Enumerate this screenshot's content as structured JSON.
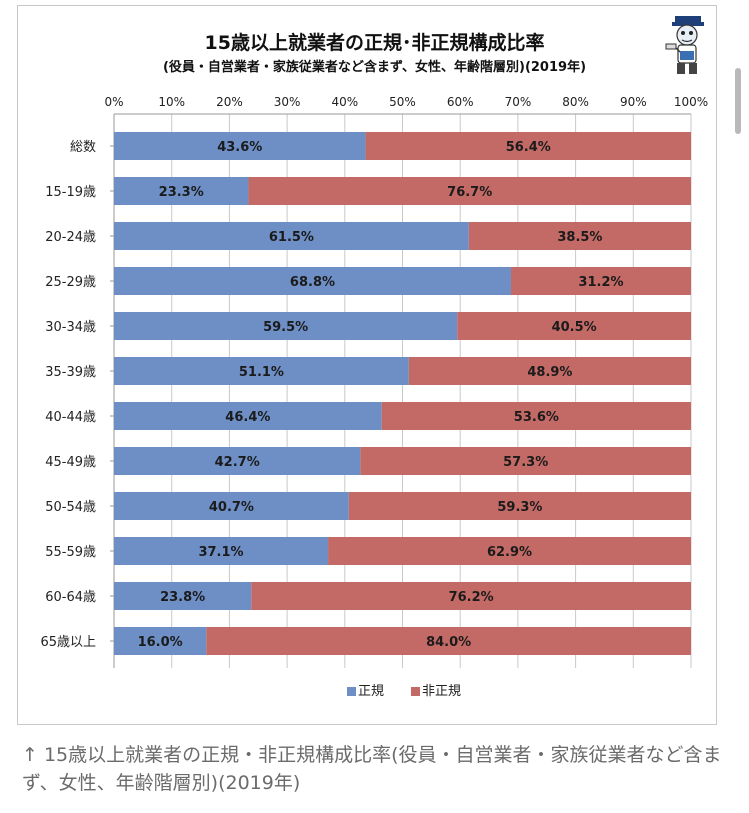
{
  "chart_data": {
    "type": "bar",
    "orientation": "horizontal",
    "stacked": true,
    "percent": true,
    "title": "15歳以上就業者の正規･非正規構成比率",
    "subtitle": "(役員・自営業者・家族従業者など含まず、女性、年齢階層別)(2019年)",
    "categories": [
      "総数",
      "15-19歳",
      "20-24歳",
      "25-29歳",
      "30-34歳",
      "35-39歳",
      "40-44歳",
      "45-49歳",
      "50-54歳",
      "55-59歳",
      "60-64歳",
      "65歳以上"
    ],
    "series": [
      {
        "name": "正規",
        "color": "#6d8fc6",
        "values": [
          43.6,
          23.3,
          61.5,
          68.8,
          59.5,
          51.1,
          46.4,
          42.7,
          40.7,
          37.1,
          23.8,
          16.0
        ]
      },
      {
        "name": "非正規",
        "color": "#c46a66",
        "values": [
          56.4,
          76.7,
          38.5,
          31.2,
          40.5,
          48.9,
          53.6,
          57.3,
          59.3,
          62.9,
          76.2,
          84.0
        ]
      }
    ],
    "xticks": [
      "0%",
      "10%",
      "20%",
      "30%",
      "40%",
      "50%",
      "60%",
      "70%",
      "80%",
      "90%",
      "100%"
    ],
    "xlim": [
      0,
      100
    ],
    "grid": true,
    "legend_position": "bottom"
  },
  "caption": "↑ 15歳以上就業者の正規・非正規構成比率(役員・自営業者・家族従業者など含まず、女性、年齢階層別)(2019年)"
}
